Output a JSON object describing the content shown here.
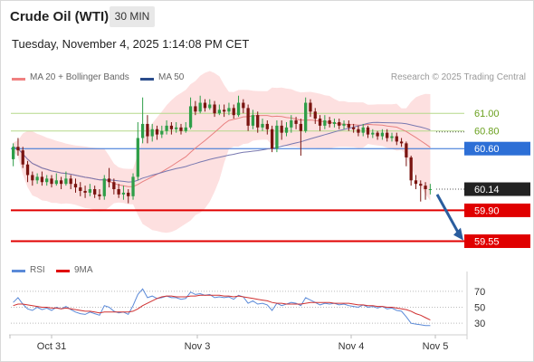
{
  "header": {
    "title": "Crude Oil (WTI)",
    "interval": "30 MIN"
  },
  "timestamp": "Tuesday, November 4, 2025 1:14:08 PM CET",
  "legend": {
    "ma20": "MA 20 + Bollinger Bands",
    "ma50": "MA 50",
    "source": "Research © 2025 Trading Central",
    "rsi": "RSI",
    "ma9": "9MA"
  },
  "colors": {
    "candle_up": "#2e9e48",
    "candle_down": "#7a1410",
    "bollinger_fill": "#fde0e0",
    "ma20": "#e88080",
    "ma50": "#7878b0",
    "resistance_green": "#b5d98a",
    "support_red": "#e00000",
    "pivot_blue": "#2d6fd6",
    "arrow": "#2a5d9e",
    "rsi": "#5b8ad8",
    "rsi_ma": "#d03030"
  },
  "chart_data": [
    {
      "type": "candlestick",
      "title": "Crude Oil (WTI)",
      "x_ticks": [
        "Oct 31",
        "Nov 3",
        "Nov 4",
        "Nov 5"
      ],
      "ylim": [
        59.35,
        61.3
      ],
      "levels": [
        {
          "label": "61.00",
          "value": 61.0,
          "kind": "resistance"
        },
        {
          "label": "60.80",
          "value": 60.8,
          "kind": "resistance"
        },
        {
          "label": "60.60",
          "value": 60.6,
          "kind": "pivot"
        },
        {
          "label": "60.14",
          "value": 60.14,
          "kind": "last"
        },
        {
          "label": "59.90",
          "value": 59.9,
          "kind": "support"
        },
        {
          "label": "59.55",
          "value": 59.55,
          "kind": "support"
        }
      ],
      "last_price": 60.14,
      "projection_target": 59.55,
      "candles": [
        [
          60.48,
          60.62,
          60.66,
          60.4
        ],
        [
          60.62,
          60.58,
          60.72,
          60.52
        ],
        [
          60.58,
          60.42,
          60.62,
          60.38
        ],
        [
          60.42,
          60.3,
          60.46,
          60.22
        ],
        [
          60.3,
          60.24,
          60.34,
          60.18
        ],
        [
          60.24,
          60.28,
          60.32,
          60.2
        ],
        [
          60.28,
          60.22,
          60.34,
          60.18
        ],
        [
          60.22,
          60.26,
          60.3,
          60.18
        ],
        [
          60.26,
          60.2,
          60.3,
          60.16
        ],
        [
          60.2,
          60.24,
          60.32,
          60.18
        ],
        [
          60.24,
          60.2,
          60.28,
          60.14
        ],
        [
          60.2,
          60.26,
          60.34,
          60.18
        ],
        [
          60.26,
          60.2,
          60.3,
          60.14
        ],
        [
          60.2,
          60.16,
          60.26,
          60.1
        ],
        [
          60.16,
          60.12,
          60.22,
          60.06
        ],
        [
          60.12,
          60.1,
          60.18,
          60.04
        ],
        [
          60.1,
          60.14,
          60.2,
          60.06
        ],
        [
          60.14,
          60.08,
          60.18,
          60.04
        ],
        [
          60.08,
          60.06,
          60.14,
          60.02
        ],
        [
          60.06,
          60.26,
          60.3,
          60.02
        ],
        [
          60.26,
          60.22,
          60.38,
          60.16
        ],
        [
          60.22,
          60.14,
          60.26,
          60.08
        ],
        [
          60.14,
          60.08,
          60.2,
          60.04
        ],
        [
          60.08,
          60.1,
          60.18,
          60.02
        ],
        [
          60.1,
          60.06,
          60.14,
          59.98
        ],
        [
          60.06,
          60.28,
          60.32,
          60.02
        ],
        [
          60.28,
          60.72,
          60.9,
          60.24
        ],
        [
          60.72,
          60.88,
          61.18,
          60.66
        ],
        [
          60.88,
          60.74,
          60.98,
          60.66
        ],
        [
          60.74,
          60.82,
          60.88,
          60.68
        ],
        [
          60.82,
          60.76,
          60.86,
          60.7
        ],
        [
          60.76,
          60.8,
          60.86,
          60.72
        ],
        [
          60.8,
          60.86,
          60.92,
          60.76
        ],
        [
          60.86,
          60.82,
          60.9,
          60.76
        ],
        [
          60.82,
          60.84,
          60.9,
          60.78
        ],
        [
          60.84,
          60.8,
          60.88,
          60.76
        ],
        [
          60.8,
          60.84,
          60.9,
          60.78
        ],
        [
          60.84,
          61.08,
          61.18,
          60.82
        ],
        [
          61.08,
          61.02,
          61.14,
          60.98
        ],
        [
          61.02,
          61.12,
          61.2,
          61.0
        ],
        [
          61.12,
          61.06,
          61.16,
          61.02
        ],
        [
          61.06,
          61.1,
          61.16,
          61.04
        ],
        [
          61.1,
          61.0,
          61.14,
          60.96
        ],
        [
          61.0,
          61.04,
          61.1,
          60.98
        ],
        [
          61.04,
          61.02,
          61.1,
          60.96
        ],
        [
          61.02,
          61.06,
          61.12,
          60.98
        ],
        [
          61.06,
          60.98,
          61.1,
          60.94
        ],
        [
          60.98,
          61.12,
          61.2,
          60.96
        ],
        [
          61.12,
          61.06,
          61.16,
          61.0
        ],
        [
          61.06,
          60.86,
          61.1,
          60.8
        ],
        [
          60.86,
          60.98,
          61.04,
          60.82
        ],
        [
          60.98,
          60.84,
          61.02,
          60.78
        ],
        [
          60.84,
          60.88,
          60.94,
          60.8
        ],
        [
          60.88,
          60.82,
          60.92,
          60.76
        ],
        [
          60.82,
          60.6,
          60.86,
          60.56
        ],
        [
          60.6,
          60.86,
          60.92,
          60.56
        ],
        [
          60.86,
          60.78,
          60.92,
          60.7
        ],
        [
          60.78,
          60.84,
          60.9,
          60.74
        ],
        [
          60.84,
          60.92,
          60.98,
          60.78
        ],
        [
          60.92,
          60.88,
          60.96,
          60.82
        ],
        [
          60.88,
          60.8,
          60.94,
          60.52
        ],
        [
          60.8,
          61.12,
          61.18,
          60.78
        ],
        [
          61.12,
          61.02,
          61.16,
          60.96
        ],
        [
          61.02,
          60.94,
          61.06,
          60.88
        ],
        [
          60.94,
          60.86,
          60.98,
          60.8
        ],
        [
          60.86,
          60.92,
          60.98,
          60.82
        ],
        [
          60.92,
          60.88,
          60.96,
          60.84
        ],
        [
          60.88,
          60.9,
          60.94,
          60.84
        ],
        [
          60.9,
          60.86,
          60.94,
          60.82
        ],
        [
          60.86,
          60.88,
          60.92,
          60.82
        ],
        [
          60.88,
          60.84,
          60.92,
          60.8
        ],
        [
          60.84,
          60.82,
          60.88,
          60.78
        ],
        [
          60.82,
          60.78,
          60.86,
          60.74
        ],
        [
          60.78,
          60.84,
          60.88,
          60.74
        ],
        [
          60.84,
          60.76,
          60.86,
          60.72
        ],
        [
          60.76,
          60.78,
          60.82,
          60.72
        ],
        [
          60.78,
          60.74,
          60.8,
          60.7
        ],
        [
          60.74,
          60.78,
          60.82,
          60.7
        ],
        [
          60.78,
          60.72,
          60.82,
          60.68
        ],
        [
          60.72,
          60.74,
          60.78,
          60.68
        ],
        [
          60.74,
          60.68,
          60.78,
          60.64
        ],
        [
          60.68,
          60.66,
          60.72,
          60.62
        ],
        [
          60.66,
          60.5,
          60.68,
          60.4
        ],
        [
          60.5,
          60.24,
          60.52,
          60.18
        ],
        [
          60.24,
          60.2,
          60.3,
          60.14
        ],
        [
          60.2,
          60.18,
          60.24,
          60.0
        ],
        [
          60.18,
          60.14,
          60.22,
          60.02
        ],
        [
          60.14,
          60.14,
          60.2,
          60.08
        ]
      ]
    },
    {
      "type": "line",
      "title": "RSI",
      "ylim": [
        20,
        80
      ],
      "y_ticks": [
        70,
        50,
        30
      ],
      "series": [
        {
          "name": "RSI",
          "values": [
            56,
            62,
            54,
            48,
            46,
            50,
            47,
            49,
            46,
            50,
            48,
            51,
            47,
            44,
            42,
            41,
            44,
            42,
            40,
            52,
            50,
            45,
            43,
            44,
            41,
            52,
            66,
            73,
            62,
            64,
            61,
            62,
            64,
            62,
            62,
            60,
            61,
            69,
            66,
            67,
            65,
            66,
            62,
            63,
            62,
            63,
            60,
            65,
            63,
            55,
            58,
            54,
            55,
            53,
            46,
            55,
            52,
            54,
            56,
            55,
            52,
            62,
            59,
            56,
            53,
            55,
            54,
            55,
            53,
            54,
            52,
            51,
            50,
            53,
            50,
            51,
            49,
            51,
            48,
            49,
            46,
            45,
            38,
            30,
            29,
            28,
            27,
            27
          ]
        },
        {
          "name": "9MA",
          "values": [
            52,
            54,
            54,
            53,
            52,
            51,
            50,
            50,
            49,
            49,
            48,
            49,
            48,
            47,
            46,
            45,
            45,
            44,
            43,
            44,
            44,
            44,
            44,
            44,
            44,
            45,
            48,
            52,
            55,
            58,
            61,
            63,
            64,
            64,
            63,
            63,
            63,
            64,
            64,
            65,
            65,
            65,
            65,
            65,
            64,
            64,
            63,
            64,
            63,
            62,
            61,
            60,
            59,
            58,
            56,
            55,
            55,
            54,
            54,
            54,
            54,
            55,
            56,
            56,
            56,
            56,
            56,
            55,
            55,
            55,
            55,
            54,
            53,
            53,
            52,
            52,
            51,
            51,
            50,
            50,
            49,
            48,
            47,
            45,
            42,
            40,
            37,
            34
          ]
        }
      ]
    }
  ]
}
